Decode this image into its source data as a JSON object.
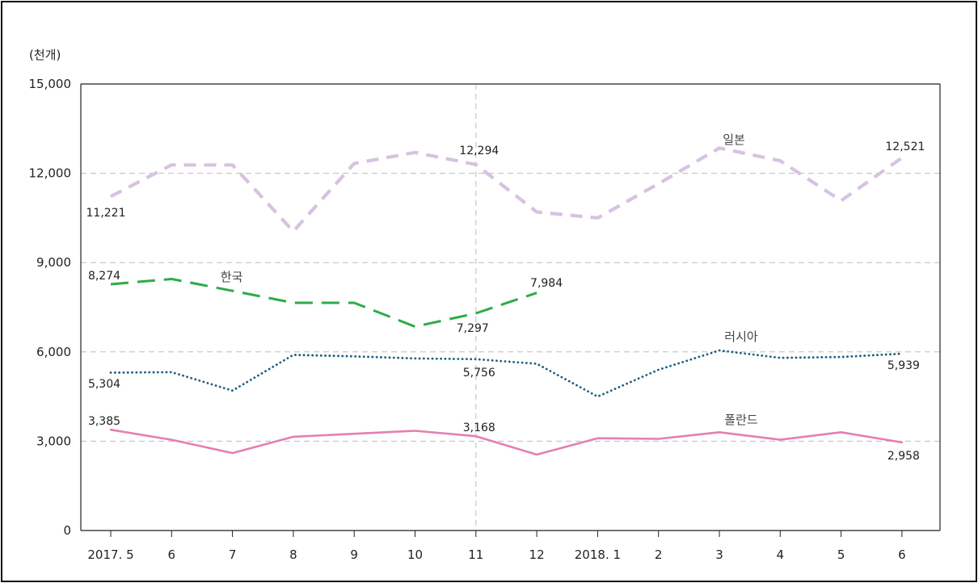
{
  "chart_data": {
    "type": "line",
    "unit_label": "(천개)",
    "categories": [
      "2017. 5",
      "6",
      "7",
      "8",
      "9",
      "10",
      "11",
      "12",
      "2018. 1",
      "2",
      "3",
      "4",
      "5",
      "6"
    ],
    "ylim": [
      0,
      15000
    ],
    "yticks": [
      "0",
      "3,000",
      "6,000",
      "9,000",
      "12,000",
      "15,000"
    ],
    "grid": "horizontal dashed",
    "divider_after_category": "11",
    "series": [
      {
        "name": "일본",
        "color": "#d7c2e2",
        "dash": "long-dash",
        "values": [
          11221,
          12280,
          12280,
          10050,
          12330,
          12700,
          12294,
          10700,
          10500,
          11650,
          12850,
          12420,
          11080,
          12521
        ]
      },
      {
        "name": "한국",
        "color": "#2eab48",
        "dash": "dash",
        "values": [
          8274,
          8450,
          8050,
          7650,
          7650,
          6850,
          7297,
          7984,
          null,
          null,
          null,
          null,
          null,
          null
        ]
      },
      {
        "name": "러시아",
        "color": "#1d5f7e",
        "dash": "dotted",
        "values": [
          5304,
          5320,
          4700,
          5900,
          5850,
          5780,
          5756,
          5600,
          4500,
          5400,
          6050,
          5800,
          5830,
          5939
        ]
      },
      {
        "name": "폴란드",
        "color": "#e57fb0",
        "dash": "solid",
        "values": [
          3385,
          3050,
          2600,
          3150,
          3250,
          3350,
          3168,
          2550,
          3100,
          3080,
          3300,
          3050,
          3300,
          2958
        ]
      }
    ],
    "data_labels": [
      {
        "series": "일본",
        "index": 0,
        "text": "11,221"
      },
      {
        "series": "일본",
        "index": 6,
        "text": "12,294"
      },
      {
        "series": "일본",
        "index": 13,
        "text": "12,521"
      },
      {
        "series": "한국",
        "index": 0,
        "text": "8,274"
      },
      {
        "series": "한국",
        "index": 6,
        "text": "7,297"
      },
      {
        "series": "한국",
        "index": 7,
        "text": "7,984"
      },
      {
        "series": "러시아",
        "index": 0,
        "text": "5,304"
      },
      {
        "series": "러시아",
        "index": 6,
        "text": "5,756"
      },
      {
        "series": "러시아",
        "index": 13,
        "text": "5,939"
      },
      {
        "series": "폴란드",
        "index": 0,
        "text": "3,385"
      },
      {
        "series": "폴란드",
        "index": 6,
        "text": "3,168"
      },
      {
        "series": "폴란드",
        "index": 13,
        "text": "2,958"
      }
    ]
  }
}
